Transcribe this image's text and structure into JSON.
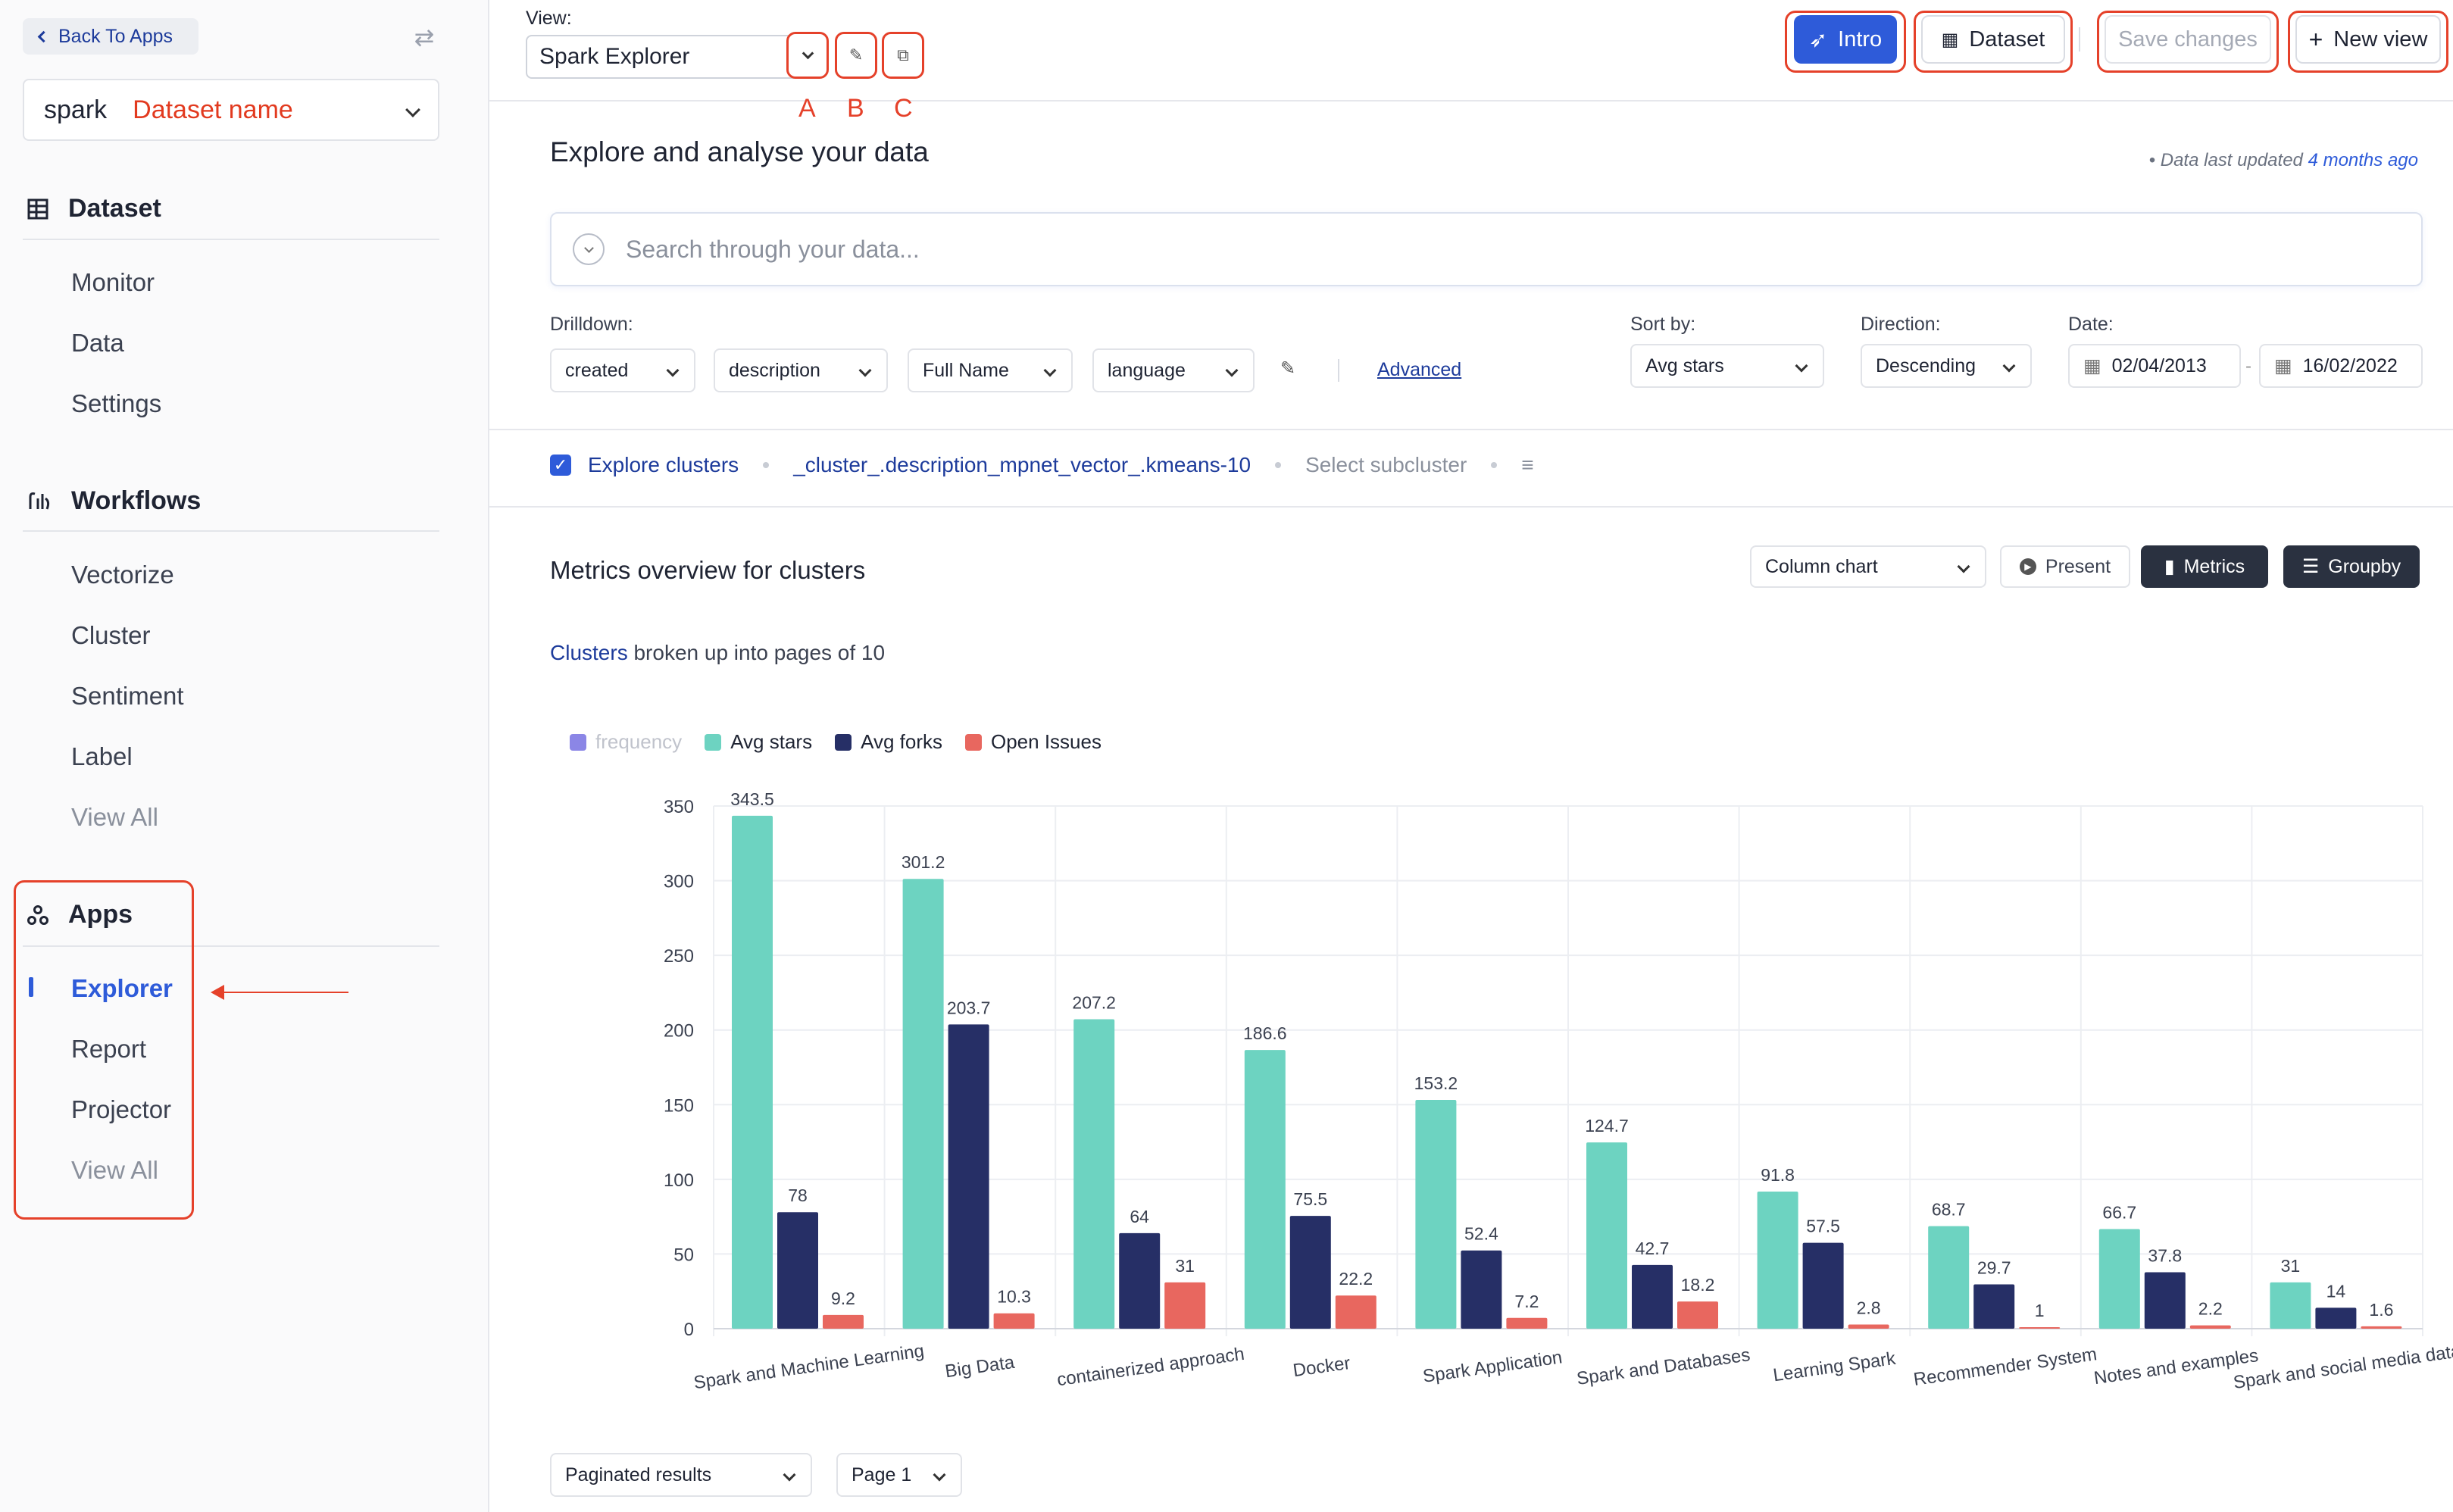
{
  "sidebar": {
    "back_label": "Back To Apps",
    "dataset_prefix": "spark",
    "dataset_name": "Dataset name",
    "sections": [
      {
        "title": "Dataset",
        "icon": "table-icon",
        "items": [
          {
            "label": "Monitor"
          },
          {
            "label": "Data"
          },
          {
            "label": "Settings"
          }
        ]
      },
      {
        "title": "Workflows",
        "icon": "workflow-icon",
        "items": [
          {
            "label": "Vectorize"
          },
          {
            "label": "Cluster"
          },
          {
            "label": "Sentiment"
          },
          {
            "label": "Label"
          },
          {
            "label": "View All"
          }
        ]
      },
      {
        "title": "Apps",
        "icon": "apps-icon",
        "items": [
          {
            "label": "Explorer"
          },
          {
            "label": "Report"
          },
          {
            "label": "Projector"
          },
          {
            "label": "View All"
          }
        ]
      }
    ]
  },
  "topbar": {
    "view_label": "View:",
    "view_value": "Spark Explorer",
    "letters": [
      "A",
      "B",
      "C"
    ],
    "intro_label": "Intro",
    "dataset_label": "Dataset",
    "save_label": "Save changes",
    "new_view_label": "New view"
  },
  "header": {
    "title": "Explore and analyse your data",
    "updated_prefix": "Data last updated",
    "updated_ago": "4 months ago"
  },
  "search": {
    "placeholder": "Search through your data..."
  },
  "filters": {
    "drilldown_label": "Drilldown:",
    "drilldowns": [
      "created",
      "description",
      "Full Name",
      "language"
    ],
    "advanced_label": "Advanced",
    "sort_label": "Sort by:",
    "sort_value": "Avg stars",
    "direction_label": "Direction:",
    "direction_value": "Descending",
    "date_label": "Date:",
    "date_from": "02/04/2013",
    "date_to": "16/02/2022"
  },
  "clusters": {
    "explore_label": "Explore clusters",
    "cluster_field": "_cluster_.description_mpnet_vector_.kmeans-10",
    "subcluster_label": "Select subcluster"
  },
  "metrics": {
    "title": "Metrics overview for clusters",
    "chart_type": "Column chart",
    "present_label": "Present",
    "metrics_label": "Metrics",
    "groupby_label": "Groupby",
    "broken_link": "Clusters",
    "broken_rest": " broken up into pages of 10"
  },
  "pagination": {
    "mode": "Paginated results",
    "page": "Page 1"
  },
  "colors": {
    "accent": "#2e5bd9",
    "avg_stars": "#6dd3c1",
    "avg_forks": "#262f66",
    "open_issues": "#e8675f",
    "frequency": "#8b86e6",
    "annotation": "#e5412a"
  },
  "chart_data": {
    "type": "bar",
    "categories": [
      "Spark and Machine Learning",
      "Big Data",
      "containerized approach",
      "Docker",
      "Spark Application",
      "Spark and Databases",
      "Learning Spark",
      "Recommender System",
      "Notes and examples",
      "Spark and social media data"
    ],
    "series": [
      {
        "name": "Avg stars",
        "values": [
          343.5,
          301.2,
          207.2,
          186.6,
          153.2,
          124.7,
          91.8,
          68.7,
          66.7,
          31
        ]
      },
      {
        "name": "Avg forks",
        "values": [
          78,
          203.7,
          64,
          75.5,
          52.4,
          42.7,
          57.5,
          29.7,
          37.8,
          14
        ]
      },
      {
        "name": "Open Issues",
        "values": [
          9.2,
          10.3,
          31,
          22.2,
          7.2,
          18.2,
          2.8,
          1,
          2.2,
          1.6
        ]
      }
    ],
    "legend": [
      "frequency",
      "Avg stars",
      "Avg forks",
      "Open Issues"
    ],
    "legend_placement": "top-left",
    "yticks": [
      0,
      50,
      100,
      150,
      200,
      250,
      300,
      350
    ],
    "ylim": [
      0,
      350
    ],
    "grid": true
  }
}
